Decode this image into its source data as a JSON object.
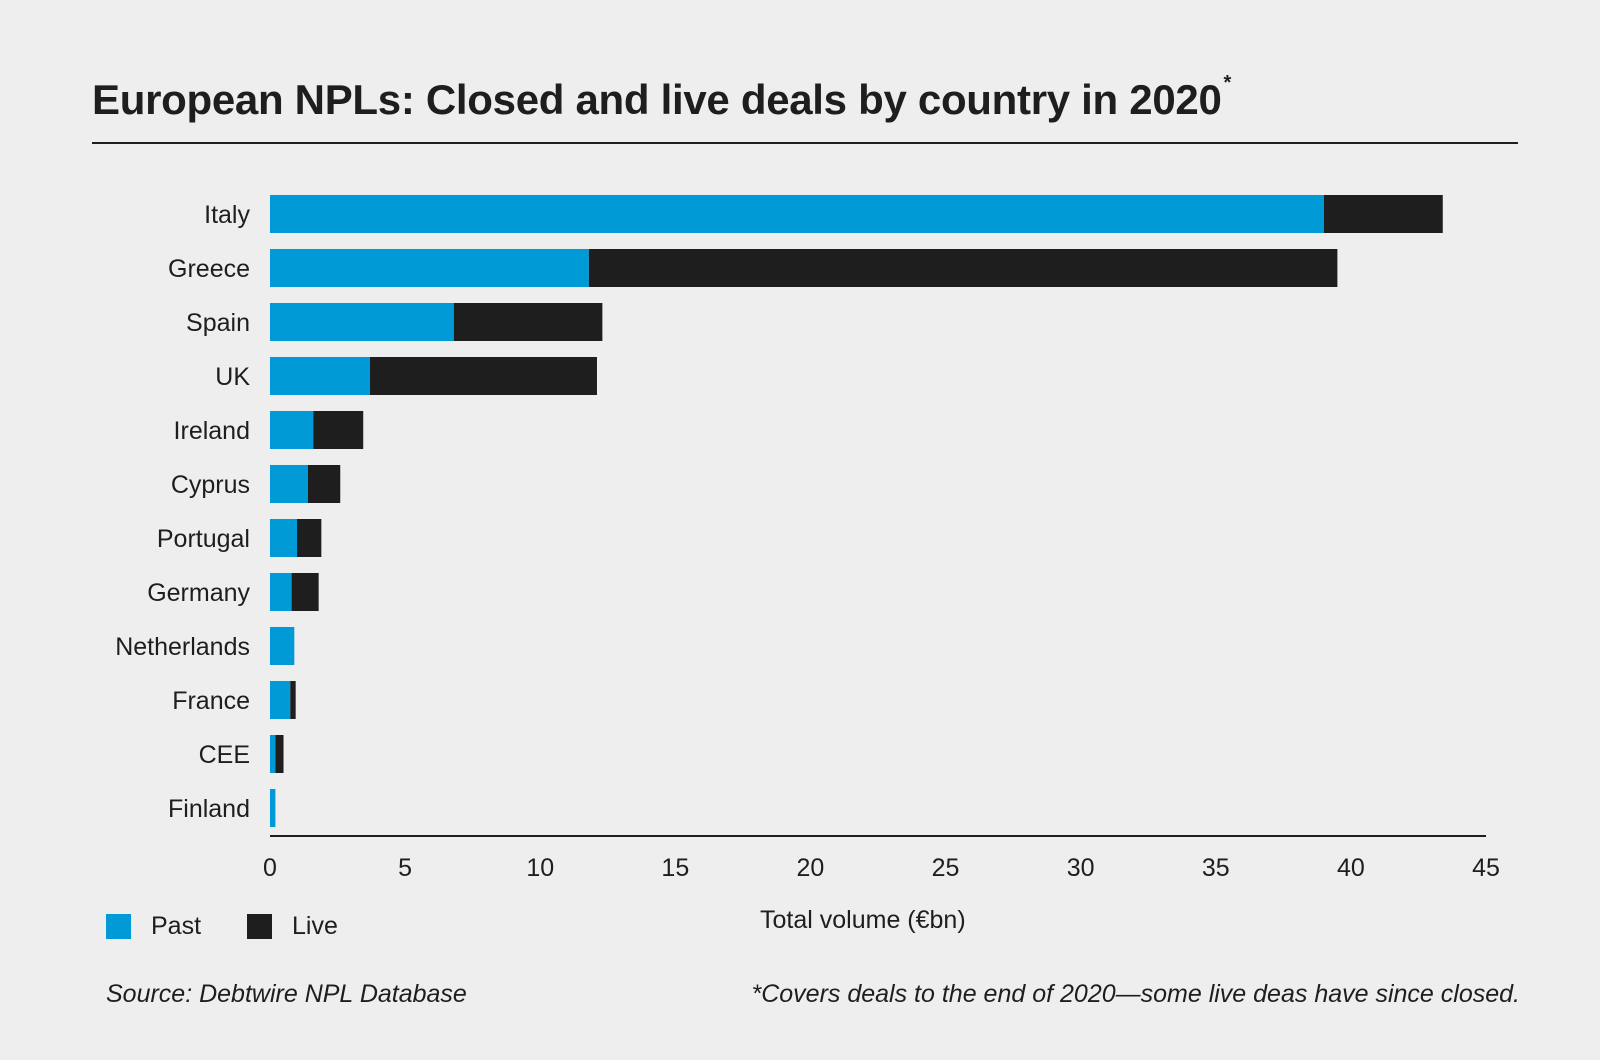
{
  "header": {
    "title": "European NPLs: Closed and live deals by country in 2020",
    "title_mark": "*"
  },
  "legend": {
    "past_label": "Past",
    "live_label": "Live"
  },
  "footer": {
    "source": "Source: Debtwire NPL Database",
    "footnote": "*Covers deals to the end of 2020—some live deas have since closed."
  },
  "colors": {
    "past": "#009bd6",
    "live": "#1e1e1e",
    "background": "#eeeeee"
  },
  "chart_data": {
    "type": "bar",
    "orientation": "horizontal",
    "stacked": true,
    "title": "European NPLs: Closed and live deals by country in 2020",
    "xlabel": "Total volume (€bn)",
    "ylabel": "",
    "xlim": [
      0,
      45
    ],
    "xticks": [
      0,
      5,
      10,
      15,
      20,
      25,
      30,
      35,
      40,
      45
    ],
    "grid": false,
    "legend_position": "bottom-left",
    "categories": [
      "Italy",
      "Greece",
      "Spain",
      "UK",
      "Ireland",
      "Cyprus",
      "Portugal",
      "Germany",
      "Netherlands",
      "France",
      "CEE",
      "Finland"
    ],
    "series": [
      {
        "name": "Past",
        "color": "#009bd6",
        "values": [
          39.0,
          11.8,
          6.8,
          3.7,
          1.6,
          1.4,
          1.0,
          0.8,
          0.9,
          0.75,
          0.2,
          0.2
        ]
      },
      {
        "name": "Live",
        "color": "#1e1e1e",
        "values": [
          4.4,
          27.7,
          5.5,
          8.4,
          1.85,
          1.2,
          0.9,
          1.0,
          0.0,
          0.2,
          0.3,
          0.0
        ]
      }
    ]
  }
}
